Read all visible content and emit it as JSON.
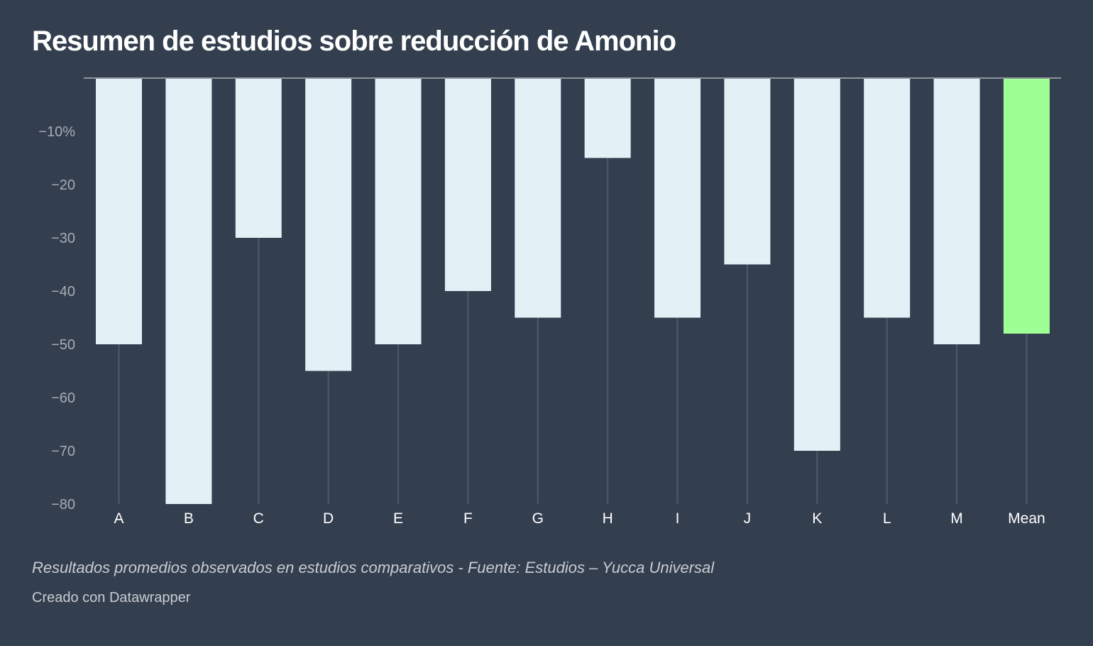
{
  "chart_data": {
    "type": "bar",
    "title": "Resumen de estudios sobre reducción de Amonio",
    "categories": [
      "A",
      "B",
      "C",
      "D",
      "E",
      "F",
      "G",
      "H",
      "I",
      "J",
      "K",
      "L",
      "M",
      "Mean"
    ],
    "values": [
      -50,
      -80,
      -30,
      -55,
      -50,
      -40,
      -45,
      -15,
      -45,
      -35,
      -70,
      -45,
      -50,
      -48
    ],
    "ylim": [
      -80,
      0
    ],
    "yticks": [
      -10,
      -20,
      -30,
      -40,
      -50,
      -60,
      -70,
      -80
    ],
    "ytick_labels": [
      "−10%",
      "−20",
      "−30",
      "−40",
      "−50",
      "−60",
      "−70",
      "−80"
    ],
    "grid": false,
    "colors": {
      "bar": "#e3f1f7",
      "highlight": "#9dff94",
      "background": "#333e4f"
    },
    "highlight_category": "Mean"
  },
  "notes": "Resultados promedios observados en estudios comparativos - Fuente: Estudios – Yucca Universal",
  "byline": "Creado con Datawrapper"
}
